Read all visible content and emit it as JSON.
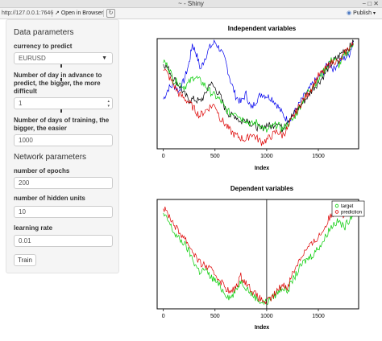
{
  "window": {
    "title": "~ - Shiny",
    "controls": "− □ ✕"
  },
  "toolbar": {
    "url": "http://127.0.0.1:7646",
    "open_in_browser": "Open in Browser",
    "publish": "Publish"
  },
  "sidebar": {
    "heading_data": "Data parameters",
    "currency_label": "currency to predict",
    "currency_value": "EURUSD",
    "days_advance_label": "Number of day in advance to predict, the bigger, the more difficult",
    "days_advance_value": "1",
    "days_training_label": "Number of days of training, the bigger, the easier",
    "days_training_value": "1000",
    "heading_network": "Network parameters",
    "epochs_label": "number of epochs",
    "epochs_value": "200",
    "hidden_label": "number of hidden units",
    "hidden_value": "10",
    "lr_label": "learning rate",
    "lr_value": "0.01",
    "train_button": "Train"
  },
  "colors": {
    "blue": "#0000ee",
    "green": "#00cc00",
    "red": "#dd0000",
    "black": "#000000"
  },
  "chart_data": [
    {
      "type": "line",
      "title": "Independent variables",
      "xlabel": "Index",
      "x_ticks": [
        0,
        500,
        1000,
        1500
      ],
      "xlim": [
        -60,
        1890
      ],
      "ylim": [
        0,
        1
      ],
      "y_axis": "none",
      "series": [
        {
          "color": "#0000ee",
          "x": [
            0,
            50,
            100,
            150,
            200,
            250,
            280,
            320,
            360,
            400,
            450,
            500,
            550,
            600,
            650,
            700,
            750,
            800,
            850,
            900,
            950,
            1000,
            1050,
            1100,
            1150,
            1200,
            1250,
            1300,
            1350,
            1400,
            1450,
            1500,
            1550,
            1600,
            1650,
            1700,
            1750,
            1800,
            1840
          ],
          "y": [
            0.45,
            0.55,
            0.58,
            0.52,
            0.62,
            0.78,
            0.95,
            0.86,
            0.72,
            0.82,
            0.92,
            0.97,
            0.9,
            0.8,
            0.62,
            0.48,
            0.42,
            0.5,
            0.36,
            0.44,
            0.5,
            0.48,
            0.46,
            0.4,
            0.32,
            0.26,
            0.3,
            0.38,
            0.46,
            0.52,
            0.6,
            0.64,
            0.7,
            0.78,
            0.72,
            0.8,
            0.82,
            0.86,
            0.98
          ]
        },
        {
          "color": "#000000",
          "x": [
            0,
            50,
            100,
            150,
            200,
            250,
            300,
            350,
            400,
            450,
            500,
            550,
            600,
            650,
            700,
            750,
            800,
            850,
            900,
            950,
            1000,
            1050,
            1100,
            1150,
            1200,
            1250,
            1300,
            1350,
            1400,
            1450,
            1500,
            1550,
            1600,
            1650,
            1700,
            1750,
            1800,
            1840
          ],
          "y": [
            0.78,
            0.72,
            0.64,
            0.58,
            0.5,
            0.44,
            0.45,
            0.43,
            0.48,
            0.6,
            0.55,
            0.48,
            0.36,
            0.3,
            0.3,
            0.24,
            0.28,
            0.23,
            0.2,
            0.18,
            0.22,
            0.2,
            0.25,
            0.18,
            0.26,
            0.3,
            0.36,
            0.42,
            0.48,
            0.55,
            0.6,
            0.66,
            0.74,
            0.8,
            0.84,
            0.9,
            0.92,
            0.97
          ]
        },
        {
          "color": "#00cc00",
          "x": [
            0,
            50,
            100,
            150,
            200,
            250,
            300,
            350,
            400,
            450,
            500,
            550,
            600,
            650,
            700,
            750,
            800,
            850,
            900,
            950,
            1000,
            1050,
            1100,
            1150,
            1200,
            1250,
            1300,
            1350,
            1400,
            1450,
            1500,
            1550,
            1600,
            1650,
            1700,
            1750,
            1800,
            1840
          ],
          "y": [
            0.8,
            0.74,
            0.62,
            0.6,
            0.56,
            0.6,
            0.66,
            0.62,
            0.58,
            0.52,
            0.48,
            0.44,
            0.36,
            0.32,
            0.34,
            0.28,
            0.26,
            0.22,
            0.24,
            0.2,
            0.16,
            0.2,
            0.22,
            0.18,
            0.22,
            0.26,
            0.34,
            0.44,
            0.52,
            0.58,
            0.62,
            0.7,
            0.78,
            0.82,
            0.76,
            0.84,
            0.9,
            0.96
          ]
        },
        {
          "color": "#dd0000",
          "x": [
            0,
            50,
            100,
            150,
            200,
            250,
            300,
            350,
            400,
            450,
            500,
            550,
            600,
            650,
            700,
            750,
            800,
            850,
            900,
            950,
            1000,
            1050,
            1100,
            1150,
            1200,
            1250,
            1300,
            1350,
            1400,
            1450,
            1500,
            1550,
            1600,
            1650,
            1700,
            1750,
            1800,
            1840
          ],
          "y": [
            0.74,
            0.66,
            0.58,
            0.5,
            0.46,
            0.42,
            0.36,
            0.3,
            0.34,
            0.38,
            0.4,
            0.28,
            0.22,
            0.16,
            0.12,
            0.1,
            0.08,
            0.14,
            0.1,
            0.06,
            0.08,
            0.12,
            0.16,
            0.12,
            0.18,
            0.28,
            0.36,
            0.44,
            0.5,
            0.58,
            0.66,
            0.7,
            0.76,
            0.8,
            0.78,
            0.86,
            0.92,
            0.95
          ]
        }
      ]
    },
    {
      "type": "line",
      "title": "Dependent variables",
      "xlabel": "Index",
      "x_ticks": [
        0,
        500,
        1000,
        1500
      ],
      "xlim": [
        -60,
        1890
      ],
      "ylim": [
        0,
        1
      ],
      "y_axis": "none",
      "vline": 1000,
      "legend": {
        "position": "top-right",
        "entries": [
          {
            "label": "target",
            "color": "#00cc00"
          },
          {
            "label": "prediction",
            "color": "#dd0000"
          }
        ]
      },
      "series": [
        {
          "name": "target",
          "color": "#00cc00",
          "x": [
            0,
            50,
            100,
            150,
            200,
            250,
            300,
            350,
            400,
            450,
            500,
            550,
            600,
            650,
            700,
            750,
            800,
            850,
            900,
            950,
            1000,
            1050,
            1100,
            1150,
            1200,
            1250,
            1300,
            1350,
            1400,
            1450,
            1500,
            1550,
            1600,
            1650,
            1700,
            1750,
            1800,
            1840
          ],
          "y": [
            0.86,
            0.8,
            0.7,
            0.64,
            0.6,
            0.52,
            0.42,
            0.34,
            0.36,
            0.3,
            0.26,
            0.2,
            0.14,
            0.1,
            0.16,
            0.26,
            0.2,
            0.14,
            0.1,
            0.06,
            0.06,
            0.1,
            0.14,
            0.2,
            0.16,
            0.26,
            0.34,
            0.42,
            0.46,
            0.5,
            0.56,
            0.62,
            0.72,
            0.78,
            0.8,
            0.74,
            0.82,
            0.88
          ]
        },
        {
          "name": "prediction",
          "color": "#dd0000",
          "x": [
            0,
            50,
            100,
            150,
            200,
            250,
            300,
            350,
            400,
            450,
            500,
            550,
            600,
            650,
            700,
            750,
            800,
            850,
            900,
            950,
            1000,
            1050,
            1100,
            1150,
            1200,
            1250,
            1300,
            1350,
            1400,
            1450,
            1500,
            1550,
            1600,
            1650,
            1700,
            1750,
            1800,
            1840
          ],
          "y": [
            0.92,
            0.86,
            0.78,
            0.7,
            0.66,
            0.58,
            0.5,
            0.42,
            0.4,
            0.36,
            0.32,
            0.26,
            0.2,
            0.14,
            0.2,
            0.3,
            0.24,
            0.18,
            0.12,
            0.08,
            0.06,
            0.1,
            0.16,
            0.22,
            0.2,
            0.32,
            0.42,
            0.5,
            0.56,
            0.6,
            0.66,
            0.72,
            0.82,
            0.88,
            0.9,
            0.86,
            0.9,
            0.94
          ]
        }
      ]
    }
  ]
}
